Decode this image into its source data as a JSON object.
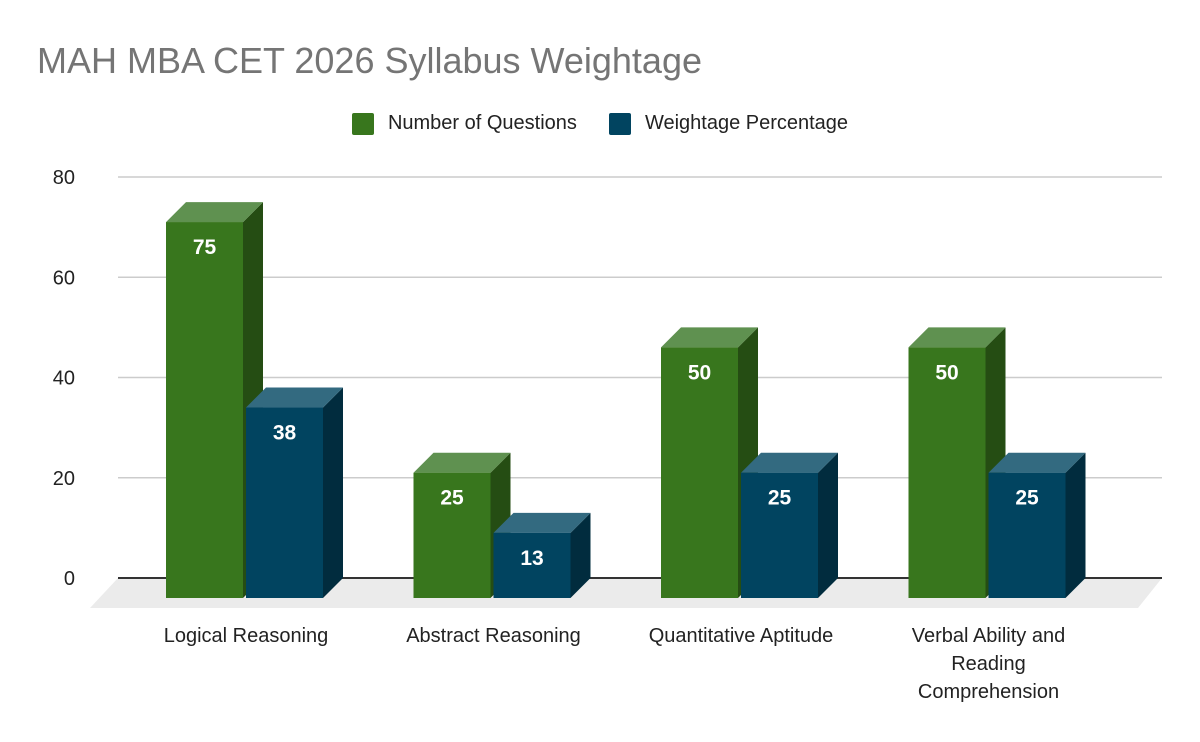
{
  "chart_data": {
    "type": "bar",
    "title": "MAH MBA CET 2026 Syllabus Weightage",
    "categories": [
      "Logical Reasoning",
      "Abstract Reasoning",
      "Quantitative Aptitude",
      "Verbal Ability and Reading Comprehension"
    ],
    "series": [
      {
        "name": "Number of Questions",
        "values": [
          75,
          25,
          50,
          50
        ],
        "color": "#38761d"
      },
      {
        "name": "Weightage Percentage",
        "values": [
          38,
          13,
          25,
          25
        ],
        "color": "#014460"
      }
    ],
    "yticks": [
      0,
      20,
      40,
      60,
      80
    ],
    "ylim": [
      0,
      80
    ],
    "grid": true,
    "legend": "top",
    "style": "3d"
  }
}
